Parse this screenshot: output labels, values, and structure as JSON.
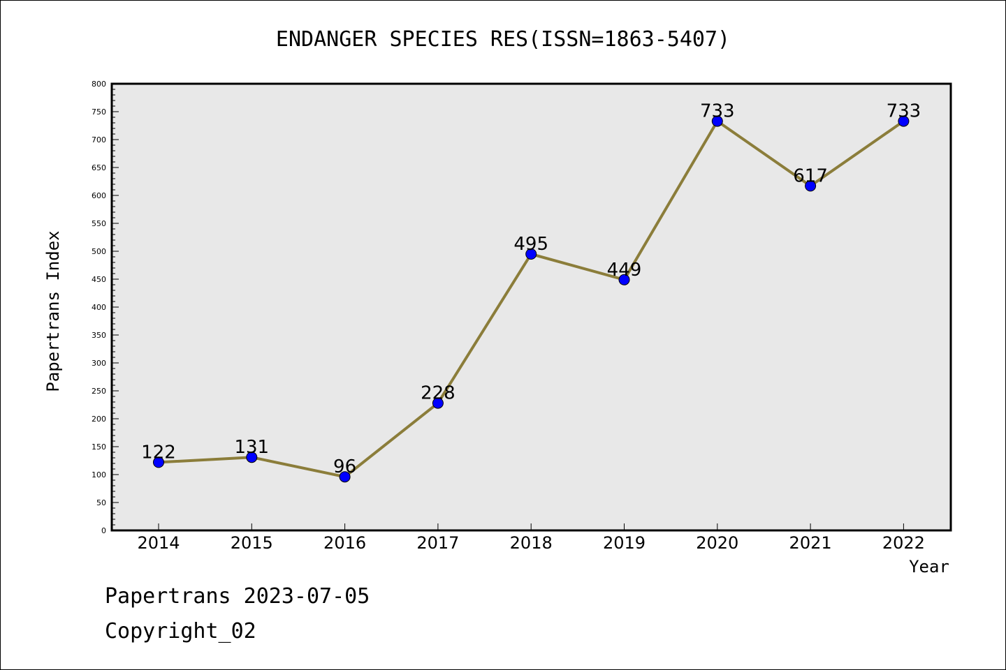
{
  "chart_data": {
    "type": "line",
    "title": "ENDANGER SPECIES RES(ISSN=1863-5407)",
    "xlabel": "Year",
    "ylabel": "Papertrans Index",
    "x": [
      "2014",
      "2015",
      "2016",
      "2017",
      "2018",
      "2019",
      "2020",
      "2021",
      "2022"
    ],
    "series": [
      {
        "values": [
          122,
          131,
          96,
          228,
          495,
          449,
          733,
          617,
          733
        ]
      }
    ],
    "ylim": [
      0,
      800
    ],
    "yticks": [
      0,
      50,
      100,
      150,
      200,
      250,
      300,
      350,
      400,
      450,
      500,
      550,
      600,
      650,
      700,
      750,
      800
    ],
    "grid": false,
    "colors": {
      "line": "#8b7d3a",
      "marker": "#0000ff",
      "plot_bg": "#e8e8e8"
    }
  },
  "footer": {
    "line1": "Papertrans 2023-07-05",
    "line2": "Copyright_02"
  }
}
